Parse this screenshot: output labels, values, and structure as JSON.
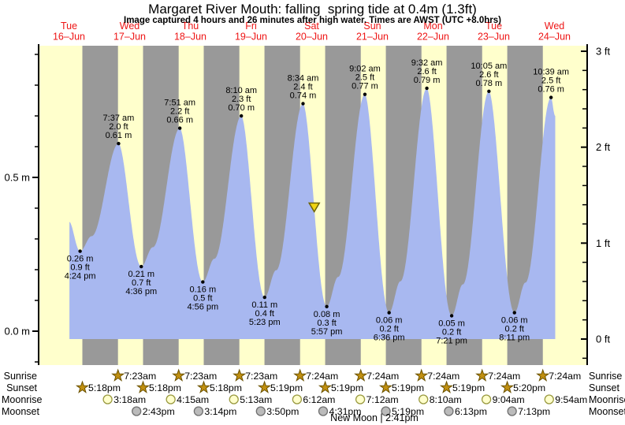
{
  "chart_data": {
    "type": "area",
    "title": "Margaret River Mouth: falling  spring tide at 0.4m (1.3ft)",
    "subtitle": "Image captured 4 hours and 26 minutes after high water. Times are AWST (UTC +8.0hrs)",
    "days": [
      {
        "weekday": "Tue",
        "date": "16–Jun"
      },
      {
        "weekday": "Wed",
        "date": "17–Jun"
      },
      {
        "weekday": "Thu",
        "date": "18–Jun"
      },
      {
        "weekday": "Fri",
        "date": "19–Jun"
      },
      {
        "weekday": "Sat",
        "date": "20–Jun"
      },
      {
        "weekday": "Sun",
        "date": "21–Jun"
      },
      {
        "weekday": "Mon",
        "date": "22–Jun"
      },
      {
        "weekday": "Tue",
        "date": "23–Jun"
      },
      {
        "weekday": "Wed",
        "date": "24–Jun"
      }
    ],
    "y_axis_left": {
      "unit": "m",
      "major_ticks": [
        {
          "label": "0.5 m",
          "value": 0.5
        },
        {
          "label": "0.0 m",
          "value": 0.0
        }
      ],
      "minor_step": 0.1,
      "minor_range": [
        -0.1,
        0.9
      ]
    },
    "y_axis_right": {
      "unit": "ft",
      "major_ticks": [
        {
          "label": "3 ft",
          "value": 3
        },
        {
          "label": "2 ft",
          "value": 2
        },
        {
          "label": "1 ft",
          "value": 1
        },
        {
          "label": "0 ft",
          "value": 0
        }
      ],
      "minor_step": 0.2,
      "minor_range": [
        -0.2,
        3.0
      ]
    },
    "high_tides": [
      {
        "day": 1,
        "time": "7:37 am",
        "label_ft": "2.0 ft",
        "label_m": "0.61 m"
      },
      {
        "day": 2,
        "time": "7:51 am",
        "label_ft": "2.2 ft",
        "label_m": "0.66 m"
      },
      {
        "day": 3,
        "time": "8:10 am",
        "label_ft": "2.3 ft",
        "label_m": "0.70 m"
      },
      {
        "day": 4,
        "time": "8:34 am",
        "label_ft": "2.4 ft",
        "label_m": "0.74 m"
      },
      {
        "day": 5,
        "time": "9:02 am",
        "label_ft": "2.5 ft",
        "label_m": "0.77 m"
      },
      {
        "day": 6,
        "time": "9:32 am",
        "label_ft": "2.6 ft",
        "label_m": "0.79 m"
      },
      {
        "day": 7,
        "time": "10:05 am",
        "label_ft": "2.6 ft",
        "label_m": "0.78 m"
      },
      {
        "day": 8,
        "time": "10:39 am",
        "label_ft": "2.5 ft",
        "label_m": "0.76 m"
      }
    ],
    "low_tides": [
      {
        "day": 0,
        "time": "4:24 pm",
        "label_ft": "0.9 ft",
        "label_m": "0.26 m"
      },
      {
        "day": 1,
        "time": "4:36 pm",
        "label_ft": "0.7 ft",
        "label_m": "0.21 m"
      },
      {
        "day": 2,
        "time": "4:56 pm",
        "label_ft": "0.5 ft",
        "label_m": "0.16 m"
      },
      {
        "day": 3,
        "time": "5:23 pm",
        "label_ft": "0.4 ft",
        "label_m": "0.11 m"
      },
      {
        "day": 4,
        "time": "5:57 pm",
        "label_ft": "0.3 ft",
        "label_m": "0.08 m"
      },
      {
        "day": 5,
        "time": "6:36 pm",
        "label_ft": "0.2 ft",
        "label_m": "0.06 m"
      },
      {
        "day": 6,
        "time": "7:21 pm",
        "label_ft": "0.2 ft",
        "label_m": "0.05 m"
      },
      {
        "day": 7,
        "time": "8:11 pm",
        "label_ft": "0.2 ft",
        "label_m": "0.06 m"
      }
    ],
    "series_start": {
      "t_hours": 12.2,
      "height_m": 0.355
    },
    "series_end": {
      "t_hours": 204.3,
      "height_m": 0.7
    },
    "current_marker": {
      "t_hours": 109.0,
      "height_m": 0.4
    },
    "colors": {
      "day_band": "#FFFFCC",
      "night_band": "#999999",
      "tide_fill": "#A8B8F0",
      "day_label": "#EE1515",
      "axis": "#000000",
      "annotation": "#000000",
      "marker_fill": "#F0D411",
      "marker_stroke": "#6E6400",
      "sun_fill": "#C08F10",
      "sun_stroke": "#6B5200",
      "moonrise_fill": "#FFFFCC",
      "moonrise_stroke": "#99993F",
      "moonset_fill": "#BBBBBB",
      "moonset_stroke": "#707070"
    }
  },
  "astro": {
    "sunrise": {
      "label": "Sunrise",
      "events": [
        {
          "day": 1,
          "time": "7:23am"
        },
        {
          "day": 2,
          "time": "7:23am"
        },
        {
          "day": 3,
          "time": "7:23am"
        },
        {
          "day": 4,
          "time": "7:24am"
        },
        {
          "day": 5,
          "time": "7:24am"
        },
        {
          "day": 6,
          "time": "7:24am"
        },
        {
          "day": 7,
          "time": "7:24am"
        },
        {
          "day": 8,
          "time": "7:24am"
        }
      ]
    },
    "sunset": {
      "label": "Sunset",
      "events": [
        {
          "day": 0,
          "time": "5:18pm"
        },
        {
          "day": 1,
          "time": "5:18pm"
        },
        {
          "day": 2,
          "time": "5:18pm"
        },
        {
          "day": 3,
          "time": "5:19pm"
        },
        {
          "day": 4,
          "time": "5:19pm"
        },
        {
          "day": 5,
          "time": "5:19pm"
        },
        {
          "day": 6,
          "time": "5:19pm"
        },
        {
          "day": 7,
          "time": "5:20pm"
        }
      ]
    },
    "moonrise": {
      "label": "Moonrise",
      "events": [
        {
          "day": 1,
          "time": "3:18am"
        },
        {
          "day": 2,
          "time": "4:15am"
        },
        {
          "day": 3,
          "time": "5:13am"
        },
        {
          "day": 4,
          "time": "6:12am"
        },
        {
          "day": 5,
          "time": "7:12am"
        },
        {
          "day": 6,
          "time": "8:10am"
        },
        {
          "day": 7,
          "time": "9:04am"
        },
        {
          "day": 8,
          "time": "9:54am"
        }
      ]
    },
    "moonset": {
      "label": "Moonset",
      "events": [
        {
          "day": 1,
          "time": "2:43pm"
        },
        {
          "day": 2,
          "time": "3:14pm"
        },
        {
          "day": 3,
          "time": "3:50pm"
        },
        {
          "day": 4,
          "time": "4:31pm"
        },
        {
          "day": 5,
          "time": "5:19pm"
        },
        {
          "day": 6,
          "time": "6:13pm"
        },
        {
          "day": 7,
          "time": "7:13pm"
        }
      ]
    },
    "new_moon": {
      "text": "New Moon | 2:41pm"
    }
  }
}
